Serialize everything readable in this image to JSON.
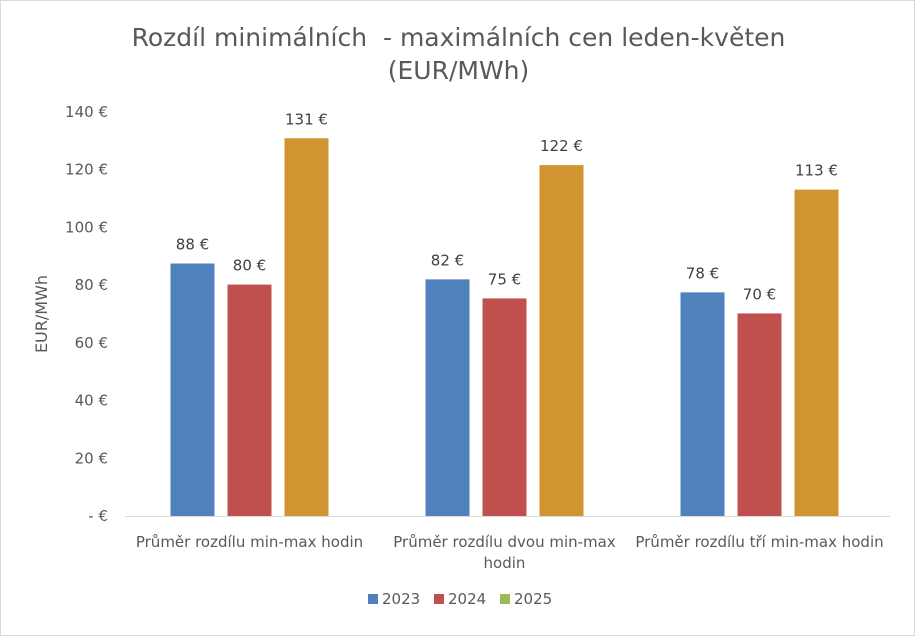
{
  "chart_data": {
    "type": "bar",
    "title_lines": [
      "Rozdíl minimálních  - maximálních cen leden-květen",
      "(EUR/MWh)"
    ],
    "ylabel": "EUR/MWh",
    "xlabel": "",
    "ylim": [
      0,
      140
    ],
    "yticks": [
      0,
      20,
      40,
      60,
      80,
      100,
      120,
      140
    ],
    "ytick_labels": [
      "-  €",
      "20 €",
      "40 €",
      "60 €",
      "80 €",
      "100 €",
      "120 €",
      "140 €"
    ],
    "categories": [
      "Průměr rozdílu min-max hodin",
      "Průměr rozdílu dvou min-max hodin",
      "Průměr rozdílu tří min-max hodin"
    ],
    "category_lines": [
      [
        "Průměr rozdílu min-max hodin"
      ],
      [
        "Průměr rozdílu dvou min-max",
        "hodin"
      ],
      [
        "Průměr rozdílu tří min-max hodin"
      ]
    ],
    "series": [
      {
        "name": "2023",
        "color": "#4f81bd",
        "values": [
          87.5,
          82,
          77.5
        ],
        "labels": [
          "88 €",
          "82 €",
          "78 €"
        ]
      },
      {
        "name": "2024",
        "color": "#c0504d",
        "values": [
          80.2,
          75.4,
          70.2
        ],
        "labels": [
          "80 €",
          "75 €",
          "70 €"
        ]
      },
      {
        "name": "2025",
        "color": "#d09530",
        "legend_color": "#9bbb59",
        "values": [
          130.9,
          121.6,
          113.1
        ],
        "labels": [
          "131 €",
          "122 €",
          "113 €"
        ]
      }
    ],
    "grid": false,
    "legend_position": "bottom"
  }
}
